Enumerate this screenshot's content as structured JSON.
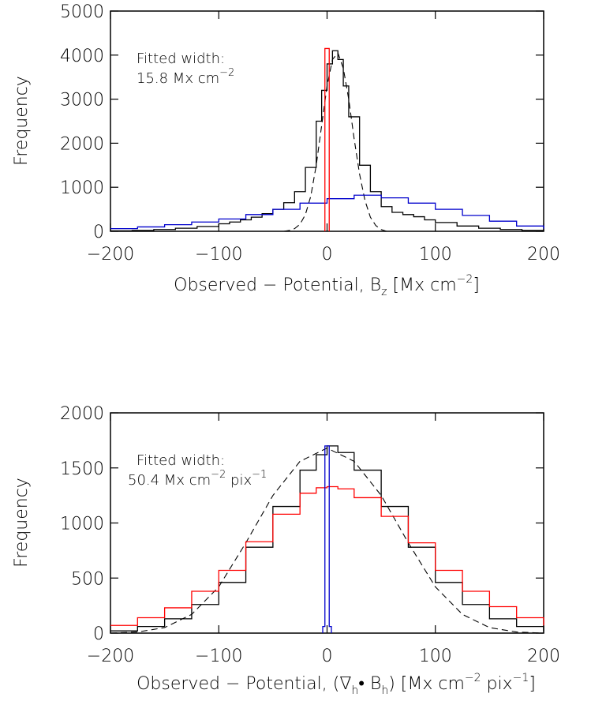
{
  "chart_data": [
    {
      "type": "line",
      "title": "",
      "xlabel": "Observed − Potential, B",
      "xlabel_sub": "z",
      "xlabel_unit_open": " [Mx cm",
      "xlabel_unit_sup": "−2",
      "xlabel_unit_close": "]",
      "ylabel": "Frequency",
      "xlim": [
        -200,
        200
      ],
      "ylim": [
        0,
        5000
      ],
      "xticks": [
        -200,
        -100,
        0,
        100,
        200
      ],
      "yticks": [
        0,
        1000,
        2000,
        3000,
        4000,
        5000
      ],
      "xtick_labels": [
        "−200",
        "−100",
        "0",
        "100",
        "200"
      ],
      "ytick_labels": [
        "0",
        "1000",
        "2000",
        "3000",
        "4000",
        "5000"
      ],
      "grid": false,
      "annotation": {
        "line1": "Fitted width:",
        "line2_main": "15.8 Mx cm",
        "line2_sup": "−2"
      },
      "series": [
        {
          "color": "#000000",
          "style": "steps",
          "x": [
            -200,
            -180,
            -160,
            -140,
            -120,
            -100,
            -90,
            -80,
            -70,
            -60,
            -50,
            -40,
            -30,
            -20,
            -10,
            -5,
            0,
            5,
            10,
            15,
            20,
            30,
            40,
            50,
            60,
            70,
            80,
            90,
            100,
            120,
            140,
            160,
            180,
            200
          ],
          "y": [
            10,
            20,
            40,
            70,
            110,
            170,
            210,
            260,
            320,
            400,
            500,
            650,
            900,
            1450,
            2500,
            3200,
            3800,
            4100,
            3900,
            3300,
            2600,
            1500,
            900,
            560,
            430,
            380,
            330,
            260,
            200,
            120,
            70,
            40,
            20,
            10
          ]
        },
        {
          "color": "#000000",
          "style": "dashed",
          "x": [
            -40,
            -35,
            -30,
            -25,
            -20,
            -15,
            -10,
            -5,
            0,
            5,
            10,
            15,
            20,
            25,
            30,
            35,
            40,
            45,
            50,
            55
          ],
          "y": [
            0,
            20,
            60,
            160,
            380,
            800,
            1500,
            2400,
            3300,
            3900,
            4050,
            3700,
            3000,
            2100,
            1300,
            700,
            320,
            130,
            40,
            0
          ]
        },
        {
          "color": "#0000cc",
          "style": "steps",
          "x": [
            -200,
            -175,
            -150,
            -125,
            -100,
            -75,
            -50,
            -25,
            0,
            25,
            50,
            75,
            100,
            125,
            150,
            175,
            200
          ],
          "y": [
            60,
            100,
            150,
            210,
            280,
            380,
            500,
            640,
            740,
            820,
            760,
            640,
            500,
            360,
            230,
            120,
            60
          ]
        },
        {
          "color": "#ff0000",
          "style": "spike",
          "x": [
            -2,
            -2,
            2,
            2
          ],
          "y": [
            0,
            4150,
            4150,
            0
          ]
        }
      ]
    },
    {
      "type": "line",
      "title": "",
      "xlabel": "Observed − Potential, (∇",
      "xlabel_sub": "h",
      "xlabel_mid": "• B",
      "xlabel_sub2": "h",
      "xlabel_unit_open": ") [Mx cm",
      "xlabel_unit_sup": "−2",
      "xlabel_unit_mid": " pix",
      "xlabel_unit_sup2": "−1",
      "xlabel_unit_close": "]",
      "ylabel": "Frequency",
      "xlim": [
        -200,
        200
      ],
      "ylim": [
        0,
        2000
      ],
      "xticks": [
        -200,
        -100,
        0,
        100,
        200
      ],
      "yticks": [
        0,
        500,
        1000,
        1500,
        2000
      ],
      "xtick_labels": [
        "−200",
        "−100",
        "0",
        "100",
        "200"
      ],
      "ytick_labels": [
        "0",
        "500",
        "1000",
        "1500",
        "2000"
      ],
      "grid": false,
      "annotation": {
        "line1": "Fitted width:",
        "line2_main": "50.4 Mx cm",
        "line2_sup": "−2",
        "line2_tail": " pix",
        "line2_sup2": "−1"
      },
      "series": [
        {
          "color": "#000000",
          "style": "steps",
          "x": [
            -200,
            -175,
            -150,
            -125,
            -100,
            -75,
            -50,
            -25,
            -10,
            0,
            10,
            25,
            50,
            75,
            100,
            125,
            150,
            175,
            200
          ],
          "y": [
            20,
            60,
            130,
            260,
            460,
            780,
            1150,
            1480,
            1620,
            1700,
            1640,
            1480,
            1150,
            780,
            460,
            260,
            130,
            60,
            20
          ]
        },
        {
          "color": "#000000",
          "style": "dashed",
          "x": [
            -200,
            -175,
            -150,
            -125,
            -100,
            -75,
            -50,
            -25,
            0,
            25,
            50,
            75,
            100,
            125,
            150,
            175,
            200
          ],
          "y": [
            0,
            10,
            50,
            170,
            420,
            820,
            1250,
            1560,
            1680,
            1560,
            1250,
            820,
            420,
            170,
            50,
            10,
            0
          ]
        },
        {
          "color": "#ff0000",
          "style": "steps",
          "x": [
            -200,
            -175,
            -150,
            -125,
            -100,
            -75,
            -50,
            -25,
            -10,
            0,
            10,
            25,
            50,
            75,
            100,
            125,
            150,
            175,
            200
          ],
          "y": [
            70,
            140,
            230,
            380,
            570,
            830,
            1080,
            1270,
            1320,
            1330,
            1310,
            1230,
            1060,
            820,
            570,
            380,
            240,
            140,
            70
          ]
        },
        {
          "color": "#0000cc",
          "style": "spike",
          "x": [
            -4,
            -4,
            -2,
            -2,
            2,
            2,
            4,
            4
          ],
          "y": [
            0,
            60,
            60,
            1700,
            1700,
            60,
            60,
            0
          ]
        }
      ]
    }
  ]
}
